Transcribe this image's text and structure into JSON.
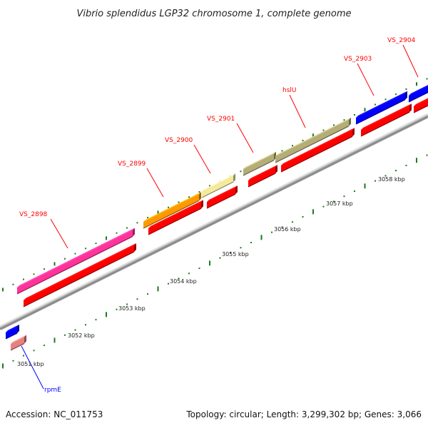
{
  "title": "Vibrio splendidus LGP32 chromosome 1, complete genome",
  "footer": {
    "accession": "Accession: NC_011753",
    "topology": "Topology: circular; Length: 3,299,302 bp; Genes: 3,066"
  },
  "scale_labels": [
    "3051 kbp",
    "3052 kbp",
    "3053 kbp",
    "3054 kbp",
    "3055 kbp",
    "3056 kbp",
    "3057 kbp",
    "3058 kbp"
  ],
  "genes": [
    {
      "name": "rpmE",
      "color": "#0000ff"
    },
    {
      "name": "VS_2898",
      "color": "#ff0000"
    },
    {
      "name": "VS_2899",
      "color": "#ff0000"
    },
    {
      "name": "VS_2900",
      "color": "#ff0000"
    },
    {
      "name": "VS_2901",
      "color": "#ff0000"
    },
    {
      "name": "hslU",
      "color": "#ff0000"
    },
    {
      "name": "VS_2903",
      "color": "#ff0000"
    },
    {
      "name": "VS_2904",
      "color": "#ff0000"
    }
  ],
  "colors": {
    "cds": "#ff0000",
    "pink": "#ff3399",
    "orange": "#ff9900",
    "yellow": "#f5e9a0",
    "olive": "#b5ad78",
    "blue": "#0000ff",
    "lightred": "#e88080",
    "backbone": "#999999",
    "tick": "#1e7a1e"
  }
}
